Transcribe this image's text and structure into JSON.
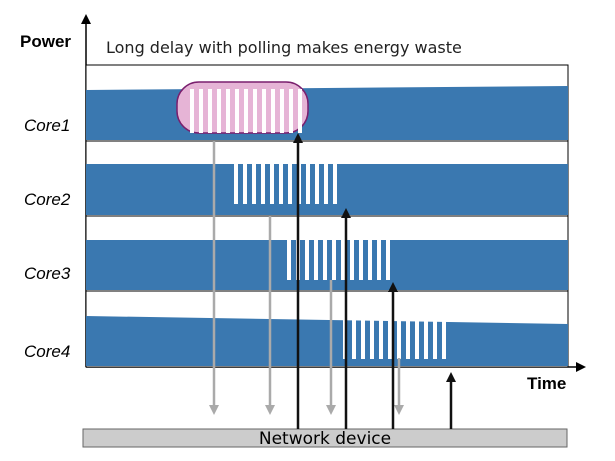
{
  "axes": {
    "y_label": "Power",
    "x_label": "Time"
  },
  "caption": "Long delay with polling makes energy waste",
  "cores": [
    {
      "label": "Core1"
    },
    {
      "label": "Core2"
    },
    {
      "label": "Core3"
    },
    {
      "label": "Core4"
    }
  ],
  "device": {
    "label": "Network device"
  },
  "colors": {
    "band": "#3a78b0",
    "panel_border": "#000000",
    "highlight_fill": "#e6b4d6",
    "highlight_border": "#7a1f6e",
    "downward_arrow": "#aaaaaa",
    "upward_arrow": "#111111",
    "device_bar": "#cccccc"
  }
}
